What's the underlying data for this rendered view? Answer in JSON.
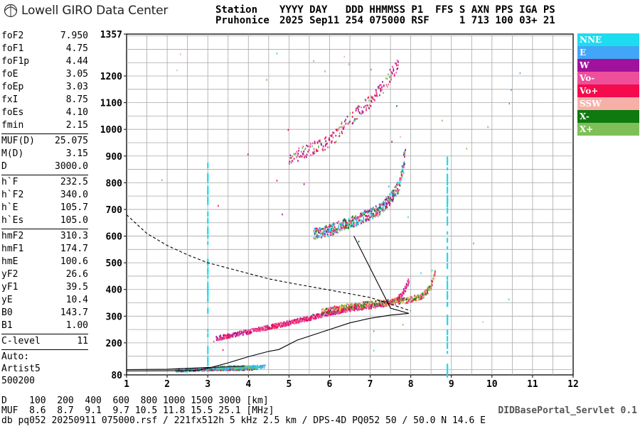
{
  "header": {
    "logo_text": "Lowell GIRO Data Center",
    "station_label": "Station",
    "station_name": "Pruhonice",
    "cols_line1": "YYYY DAY   DDD HHMMSS P1  FFS S AXN PPS IGA PS",
    "cols_line2": "2025 Sep11 254 075000 RSF     1 713 100 03+ 21"
  },
  "params": [
    {
      "name": "foF2",
      "value": "7.950"
    },
    {
      "name": "foF1",
      "value": "4.75"
    },
    {
      "name": "foF1p",
      "value": "4.44"
    },
    {
      "name": "foE",
      "value": "3.05"
    },
    {
      "name": "foEp",
      "value": "3.03"
    },
    {
      "name": "fxI",
      "value": "8.75"
    },
    {
      "name": "foEs",
      "value": "4.10"
    },
    {
      "name": "fmin",
      "value": "2.15"
    },
    {
      "name": "MUF(D)",
      "value": "25.075"
    },
    {
      "name": "M(D)",
      "value": "3.15"
    },
    {
      "name": "D",
      "value": "3000.0"
    },
    {
      "name": "h`F",
      "value": "232.5"
    },
    {
      "name": "h`F2",
      "value": "340.0"
    },
    {
      "name": "h`E",
      "value": "105.7"
    },
    {
      "name": "h`Es",
      "value": "105.0"
    },
    {
      "name": "hmF2",
      "value": "310.3"
    },
    {
      "name": "hmF1",
      "value": "174.7"
    },
    {
      "name": "hmE",
      "value": "100.6"
    },
    {
      "name": "yF2",
      "value": "26.6"
    },
    {
      "name": "yF1",
      "value": "39.5"
    },
    {
      "name": "yE",
      "value": "10.4"
    },
    {
      "name": "B0",
      "value": "143.7"
    },
    {
      "name": "B1",
      "value": "1.00"
    },
    {
      "name": "C-level",
      "value": "11"
    }
  ],
  "auto": [
    "Auto:",
    "Artist5",
    "500200"
  ],
  "legend": [
    {
      "label": "NNE",
      "color": "#1edcf0"
    },
    {
      "label": "E",
      "color": "#42a5f5"
    },
    {
      "label": "W",
      "color": "#a0129c"
    },
    {
      "label": "Vo-",
      "color": "#ee4f9a"
    },
    {
      "label": "Vo+",
      "color": "#f50a4d"
    },
    {
      "label": "SSW",
      "color": "#f7b0a8"
    },
    {
      "label": "X-",
      "color": "#0f7a0f"
    },
    {
      "label": "X+",
      "color": "#7fbf5a"
    }
  ],
  "bottom": {
    "d_line": "D    100  200  400  600  800 1000 1500 3000 [km]",
    "muf_line": "MUF  8.6  8.7  9.1  9.7 10.5 11.8 15.5 25.1 [MHz]",
    "file_line": "db pq052 20250911 075000.rsf / 221fx512h 5 kHz 2.5 km / DPS-4D PQ052 50 / 50.0 N 14.6 E",
    "servlet": "DIDBasePortal_Servlet 0.1"
  },
  "chart_data": {
    "type": "scatter",
    "xlim": [
      1,
      12
    ],
    "ylim": [
      80,
      1357
    ],
    "x_ticks": [
      1,
      2,
      3,
      4,
      5,
      6,
      7,
      8,
      9,
      10,
      11,
      12
    ],
    "y_ticks": [
      80,
      200,
      300,
      400,
      500,
      600,
      700,
      800,
      900,
      1000,
      1100,
      1200,
      1357
    ],
    "x_tick_labels": [
      "1",
      "2",
      "3",
      "4",
      "5",
      "6",
      "7",
      "8",
      "9",
      "10",
      "11",
      "12"
    ],
    "y_tick_labels": [
      "80",
      "200",
      "300",
      "400",
      "500",
      "600",
      "700",
      "800",
      "900",
      "1000",
      "1100",
      "1200",
      "1357"
    ],
    "grid": true,
    "traces": [
      {
        "name": "E",
        "points": [
          [
            2.2,
            100
          ],
          [
            2.6,
            102
          ],
          [
            3.0,
            104
          ],
          [
            3.4,
            106
          ],
          [
            3.8,
            106
          ],
          [
            4.2,
            108
          ]
        ]
      },
      {
        "name": "F1",
        "points": [
          [
            3.2,
            220
          ],
          [
            3.6,
            232
          ],
          [
            4.0,
            245
          ],
          [
            4.5,
            262
          ],
          [
            5.0,
            278
          ],
          [
            5.5,
            296
          ],
          [
            6.0,
            315
          ],
          [
            6.5,
            330
          ],
          [
            7.0,
            340
          ],
          [
            7.3,
            345
          ],
          [
            7.6,
            360
          ],
          [
            7.8,
            390
          ],
          [
            7.95,
            440
          ]
        ]
      },
      {
        "name": "F2",
        "points": [
          [
            5.6,
            612
          ],
          [
            6.0,
            625
          ],
          [
            6.4,
            650
          ],
          [
            6.8,
            672
          ],
          [
            7.2,
            700
          ],
          [
            7.5,
            745
          ],
          [
            7.7,
            790
          ],
          [
            7.8,
            850
          ],
          [
            7.85,
            940
          ]
        ]
      },
      {
        "name": "F2-2hop",
        "points": [
          [
            5.0,
            895
          ],
          [
            5.5,
            925
          ],
          [
            6.0,
            960
          ],
          [
            6.5,
            1040
          ],
          [
            7.0,
            1110
          ],
          [
            7.4,
            1180
          ],
          [
            7.7,
            1260
          ]
        ]
      },
      {
        "name": "X",
        "points": [
          [
            5.8,
            320
          ],
          [
            6.4,
            338
          ],
          [
            7.0,
            350
          ],
          [
            7.5,
            355
          ],
          [
            7.9,
            362
          ],
          [
            8.3,
            380
          ],
          [
            8.5,
            420
          ],
          [
            8.6,
            480
          ]
        ]
      },
      {
        "name": "Es",
        "points": [
          [
            3.2,
            110
          ],
          [
            3.6,
            112
          ],
          [
            4.0,
            112
          ],
          [
            4.4,
            114
          ]
        ]
      }
    ],
    "profile": [
      [
        1,
        95
      ],
      [
        2.5,
        96
      ],
      [
        2.8,
        98
      ],
      [
        3.0,
        105
      ],
      [
        3.5,
        125
      ],
      [
        4.0,
        148
      ],
      [
        4.5,
        168
      ],
      [
        4.75,
        175
      ],
      [
        5.2,
        210
      ],
      [
        5.8,
        240
      ],
      [
        6.5,
        275
      ],
      [
        7.0,
        292
      ],
      [
        7.5,
        304
      ],
      [
        7.95,
        310.3
      ]
    ],
    "profile_bottom_side": [
      [
        3.9,
        112
      ],
      [
        3.0,
        108
      ],
      [
        2.0,
        101
      ],
      [
        1,
        100
      ]
    ],
    "profile_hook": [
      [
        7.95,
        310.3
      ],
      [
        7.5,
        330
      ],
      [
        6.6,
        600
      ]
    ],
    "dashed_muf": [
      [
        1,
        680
      ],
      [
        1.5,
        610
      ],
      [
        2.0,
        565
      ],
      [
        2.5,
        530
      ],
      [
        3.0,
        500
      ],
      [
        3.5,
        480
      ],
      [
        4.0,
        460
      ],
      [
        4.5,
        440
      ],
      [
        5.0,
        425
      ],
      [
        6.0,
        398
      ],
      [
        7.0,
        370
      ],
      [
        8.0,
        320
      ]
    ]
  }
}
